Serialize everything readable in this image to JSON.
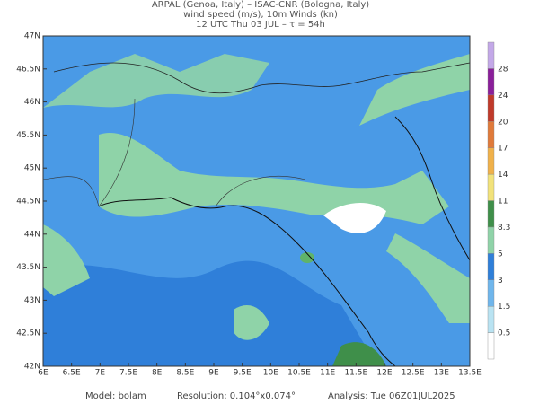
{
  "header": {
    "line1": "ARPAL (Genoa, Italy)  –  ISAC-CNR (Bologna, Italy)",
    "line2": "wind speed (m/s), 10m Winds (kn)",
    "line3": "12 UTC Thu 03 JUL  –  τ = 54h"
  },
  "map": {
    "lat_labels": [
      "47N",
      "46.5N",
      "46N",
      "45.5N",
      "45N",
      "44.5N",
      "44N",
      "43.5N",
      "43N",
      "42.5N",
      "42N"
    ],
    "lon_labels": [
      "6E",
      "6.5E",
      "7E",
      "7.5E",
      "8E",
      "8.5E",
      "9E",
      "9.5E",
      "10E",
      "10.5E",
      "11E",
      "11.5E",
      "12E",
      "12.5E",
      "13E",
      "13.5E"
    ]
  },
  "colorbar": {
    "labels": [
      "28",
      "24",
      "20",
      "17",
      "14",
      "11",
      "8.3",
      "5",
      "3",
      "1.5",
      "0.5"
    ]
  },
  "footer": {
    "model": "Model: bolam",
    "resolution": "Resolution: 0.104°x0.074°",
    "analysis": "Analysis: Tue 06Z01JUL2025"
  }
}
